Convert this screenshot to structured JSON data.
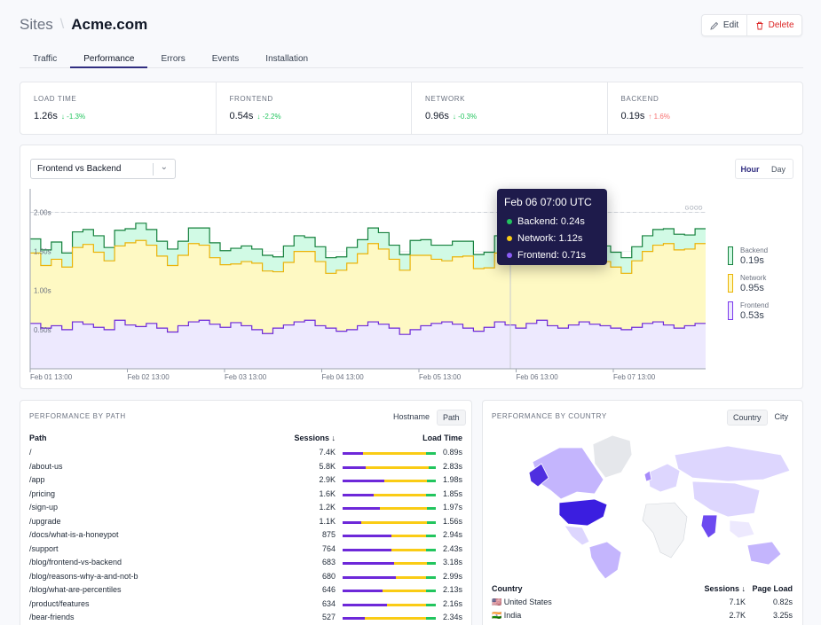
{
  "breadcrumb": {
    "parent": "Sites",
    "site": "Acme.com"
  },
  "actions": {
    "edit": "Edit",
    "delete": "Delete"
  },
  "tabs": [
    "Traffic",
    "Performance",
    "Errors",
    "Events",
    "Installation"
  ],
  "active_tab": "Performance",
  "stats": [
    {
      "label": "LOAD TIME",
      "value": "1.26s",
      "delta": "-1.3%",
      "dir": "down"
    },
    {
      "label": "FRONTEND",
      "value": "0.54s",
      "delta": "-2.2%",
      "dir": "down"
    },
    {
      "label": "NETWORK",
      "value": "0.96s",
      "delta": "-0.3%",
      "dir": "down"
    },
    {
      "label": "BACKEND",
      "value": "0.19s",
      "delta": "1.6%",
      "dir": "up"
    }
  ],
  "chart": {
    "select": "Frontend vs Backend",
    "granularity": {
      "hour": "Hour",
      "day": "Day",
      "selected": "Hour"
    },
    "threshold_label": "GOOD",
    "y_ticks": [
      "2.00s",
      "1.50s",
      "1.00s",
      "0.50s"
    ],
    "x_ticks": [
      "Feb 01 13:00",
      "Feb 02 13:00",
      "Feb 03 13:00",
      "Feb 04 13:00",
      "Feb 05 13:00",
      "Feb 06 13:00",
      "Feb 07 13:00"
    ],
    "legend": [
      {
        "name": "Backend",
        "value": "0.19s",
        "color": "#15803d",
        "fill": "#d1fae5"
      },
      {
        "name": "Network",
        "value": "0.95s",
        "color": "#eab308",
        "fill": "#fef9c3"
      },
      {
        "name": "Frontend",
        "value": "0.53s",
        "color": "#7c3aed",
        "fill": "#ede9fe"
      }
    ],
    "tooltip": {
      "title": "Feb 06 07:00 UTC",
      "rows": [
        {
          "label": "Backend: 0.24s",
          "color": "#22c55e"
        },
        {
          "label": "Network: 1.12s",
          "color": "#facc15"
        },
        {
          "label": "Frontend: 0.71s",
          "color": "#8b5cf6"
        }
      ]
    }
  },
  "chart_data": {
    "type": "area",
    "stacked": true,
    "x_ticks": [
      "Feb 01 13:00",
      "Feb 02 13:00",
      "Feb 03 13:00",
      "Feb 04 13:00",
      "Feb 05 13:00",
      "Feb 06 13:00",
      "Feb 07 13:00"
    ],
    "ylim": [
      0,
      2.3
    ],
    "threshold": 2.0,
    "series": [
      {
        "name": "Frontend",
        "values": [
          0.58,
          0.52,
          0.55,
          0.5,
          0.6,
          0.57,
          0.53,
          0.5,
          0.62,
          0.56,
          0.54,
          0.58,
          0.52,
          0.47,
          0.55,
          0.6,
          0.62,
          0.57,
          0.53,
          0.59,
          0.55,
          0.5,
          0.45,
          0.52,
          0.56,
          0.6,
          0.62,
          0.55,
          0.52,
          0.48,
          0.5,
          0.55,
          0.6,
          0.57,
          0.52,
          0.44,
          0.5,
          0.55,
          0.58,
          0.6,
          0.57,
          0.52,
          0.48,
          0.53,
          0.6,
          0.56,
          0.52,
          0.58,
          0.62,
          0.55,
          0.52,
          0.56,
          0.6,
          0.57,
          0.55,
          0.52,
          0.5,
          0.53,
          0.58,
          0.6,
          0.56,
          0.52,
          0.55,
          0.58
        ]
      },
      {
        "name": "Network",
        "values": [
          0.9,
          0.8,
          0.85,
          0.8,
          0.95,
          1.02,
          0.96,
          0.88,
          0.95,
          1.05,
          1.1,
          1.0,
          0.92,
          0.85,
          0.9,
          1.0,
          0.96,
          0.85,
          0.8,
          0.75,
          0.82,
          0.85,
          0.8,
          0.72,
          0.8,
          0.9,
          0.88,
          0.82,
          0.7,
          0.78,
          0.85,
          0.92,
          1.0,
          0.96,
          0.88,
          0.82,
          0.95,
          0.9,
          0.82,
          0.78,
          0.86,
          0.92,
          0.8,
          0.76,
          0.88,
          1.1,
          1.12,
          1.02,
          0.95,
          0.9,
          0.88,
          0.82,
          0.92,
          0.96,
          0.82,
          0.78,
          0.72,
          0.85,
          0.92,
          0.98,
          1.04,
          1.0,
          0.98,
          1.02
        ]
      },
      {
        "name": "Backend",
        "values": [
          0.18,
          0.2,
          0.22,
          0.18,
          0.2,
          0.19,
          0.21,
          0.17,
          0.2,
          0.18,
          0.22,
          0.2,
          0.19,
          0.21,
          0.18,
          0.2,
          0.22,
          0.19,
          0.18,
          0.2,
          0.2,
          0.18,
          0.2,
          0.19,
          0.21,
          0.2,
          0.18,
          0.19,
          0.2,
          0.17,
          0.2,
          0.18,
          0.2,
          0.21,
          0.18,
          0.2,
          0.19,
          0.2,
          0.18,
          0.2,
          0.2,
          0.19,
          0.18,
          0.2,
          0.22,
          0.24,
          0.24,
          0.2,
          0.19,
          0.18,
          0.2,
          0.2,
          0.19,
          0.18,
          0.2,
          0.19,
          0.2,
          0.18,
          0.2,
          0.2,
          0.19,
          0.2,
          0.18,
          0.19
        ]
      }
    ]
  },
  "paths": {
    "title": "PERFORMANCE BY PATH",
    "toggle": {
      "hostname": "Hostname",
      "path": "Path",
      "selected": "Path"
    },
    "headers": {
      "path": "Path",
      "sessions": "Sessions ↓",
      "load": "Load Time"
    },
    "rows": [
      {
        "path": "/",
        "sessions": "7.4K",
        "load": "0.89s",
        "bar": [
          0.22,
          0.68,
          0.1
        ]
      },
      {
        "path": "/about-us",
        "sessions": "5.8K",
        "load": "2.83s",
        "bar": [
          0.25,
          0.67,
          0.08
        ]
      },
      {
        "path": "/app",
        "sessions": "2.9K",
        "load": "1.98s",
        "bar": [
          0.45,
          0.45,
          0.1
        ]
      },
      {
        "path": "/pricing",
        "sessions": "1.6K",
        "load": "1.85s",
        "bar": [
          0.33,
          0.57,
          0.1
        ]
      },
      {
        "path": "/sign-up",
        "sessions": "1.2K",
        "load": "1.97s",
        "bar": [
          0.4,
          0.5,
          0.1
        ]
      },
      {
        "path": "/upgrade",
        "sessions": "1.1K",
        "load": "1.56s",
        "bar": [
          0.2,
          0.7,
          0.1
        ]
      },
      {
        "path": "/docs/what-is-a-honeypot",
        "sessions": "875",
        "load": "2.94s",
        "bar": [
          0.52,
          0.38,
          0.1
        ]
      },
      {
        "path": "/support",
        "sessions": "764",
        "load": "2.43s",
        "bar": [
          0.52,
          0.38,
          0.1
        ]
      },
      {
        "path": "/blog/frontend-vs-backend",
        "sessions": "683",
        "load": "3.18s",
        "bar": [
          0.55,
          0.35,
          0.1
        ]
      },
      {
        "path": "/blog/reasons-why-a-and-not-b",
        "sessions": "680",
        "load": "2.99s",
        "bar": [
          0.57,
          0.33,
          0.1
        ]
      },
      {
        "path": "/blog/what-are-percentiles",
        "sessions": "646",
        "load": "2.13s",
        "bar": [
          0.43,
          0.47,
          0.1
        ]
      },
      {
        "path": "/product/features",
        "sessions": "634",
        "load": "2.16s",
        "bar": [
          0.48,
          0.42,
          0.1
        ]
      },
      {
        "path": "/bear-friends",
        "sessions": "527",
        "load": "2.34s",
        "bar": [
          0.24,
          0.66,
          0.1
        ]
      }
    ]
  },
  "countries": {
    "title": "PERFORMANCE BY COUNTRY",
    "toggle": {
      "country": "Country",
      "city": "City",
      "selected": "Country"
    },
    "headers": {
      "country": "Country",
      "sessions": "Sessions ↓",
      "load": "Page Load"
    },
    "rows": [
      {
        "flag": "🇺🇸",
        "country": "United States",
        "sessions": "7.1K",
        "load": "0.82s"
      },
      {
        "flag": "🇮🇳",
        "country": "India",
        "sessions": "2.7K",
        "load": "3.25s"
      }
    ]
  }
}
